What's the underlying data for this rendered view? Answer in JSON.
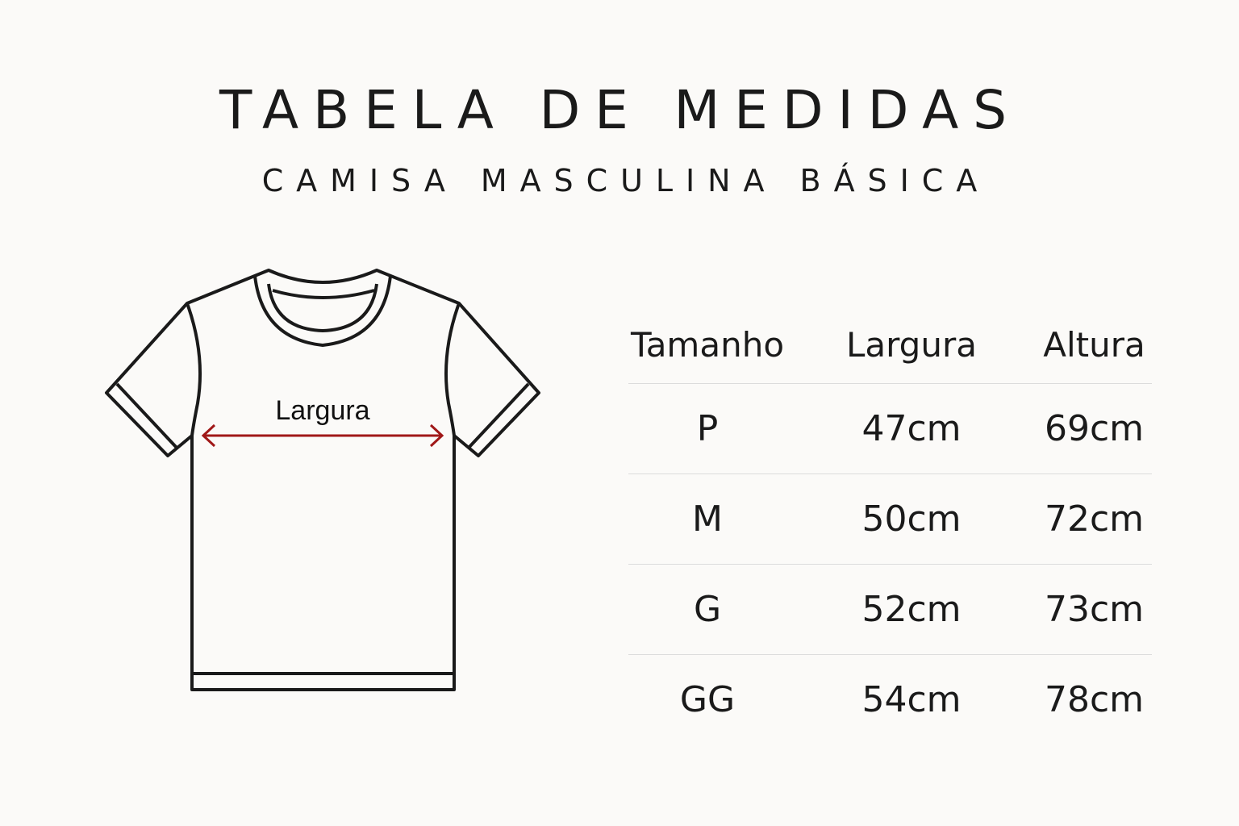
{
  "title": "TABELA DE MEDIDAS",
  "subtitle": "CAMISA MASCULINA BÁSICA",
  "diagram": {
    "measure_label": "Largura",
    "arrow_color": "#a01818"
  },
  "table": {
    "headers": [
      "Tamanho",
      "Largura",
      "Altura"
    ],
    "rows": [
      [
        "P",
        "47cm",
        "69cm"
      ],
      [
        "M",
        "50cm",
        "72cm"
      ],
      [
        "G",
        "52cm",
        "73cm"
      ],
      [
        "GG",
        "54cm",
        "78cm"
      ]
    ]
  }
}
